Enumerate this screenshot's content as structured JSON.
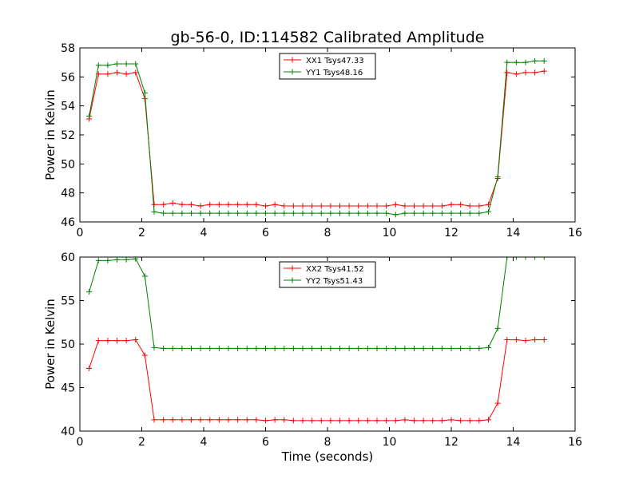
{
  "title": "gb-56-0, ID:114582 Calibrated Amplitude",
  "colors": {
    "xx": "#ff0000",
    "yy": "#008000",
    "axes": "#000000",
    "background": "#ffffff"
  },
  "chart_data": [
    {
      "type": "line",
      "title": "gb-56-0, ID:114582 Calibrated Amplitude",
      "xlabel": "",
      "ylabel": "Power in Kelvin",
      "xlim": [
        0,
        16
      ],
      "ylim": [
        46,
        58
      ],
      "xticks": [
        0,
        2,
        4,
        6,
        8,
        10,
        12,
        14,
        16
      ],
      "yticks": [
        46,
        48,
        50,
        52,
        54,
        56,
        58
      ],
      "xtick_labels": [
        "0",
        "2",
        "4",
        "6",
        "8",
        "10",
        "12",
        "14",
        "16"
      ],
      "ytick_labels": [
        "46",
        "48",
        "50",
        "52",
        "54",
        "56",
        "58"
      ],
      "grid": false,
      "legend_position": "top-center",
      "marker": "+",
      "x": [
        0.3,
        0.6,
        0.9,
        1.2,
        1.5,
        1.8,
        2.1,
        2.4,
        2.7,
        3.0,
        3.3,
        3.6,
        3.9,
        4.2,
        4.5,
        4.8,
        5.1,
        5.4,
        5.7,
        6.0,
        6.3,
        6.6,
        6.9,
        7.2,
        7.5,
        7.8,
        8.1,
        8.4,
        8.7,
        9.0,
        9.3,
        9.6,
        9.9,
        10.2,
        10.5,
        10.8,
        11.1,
        11.4,
        11.7,
        12.0,
        12.3,
        12.6,
        12.9,
        13.2,
        13.5,
        13.8,
        14.1,
        14.4,
        14.7,
        15.0
      ],
      "series": [
        {
          "name": "XX1 Tsys47.33",
          "color": "#ff0000",
          "values": [
            53.1,
            56.2,
            56.2,
            56.3,
            56.2,
            56.3,
            54.5,
            47.2,
            47.2,
            47.3,
            47.2,
            47.2,
            47.1,
            47.2,
            47.2,
            47.2,
            47.2,
            47.2,
            47.2,
            47.1,
            47.2,
            47.1,
            47.1,
            47.1,
            47.1,
            47.1,
            47.1,
            47.1,
            47.1,
            47.1,
            47.1,
            47.1,
            47.1,
            47.2,
            47.1,
            47.1,
            47.1,
            47.1,
            47.1,
            47.2,
            47.2,
            47.1,
            47.1,
            47.2,
            49.0,
            56.3,
            56.2,
            56.3,
            56.3,
            56.4
          ]
        },
        {
          "name": "YY1 Tsys48.16",
          "color": "#008000",
          "values": [
            53.3,
            56.8,
            56.8,
            56.9,
            56.9,
            56.9,
            54.9,
            46.7,
            46.6,
            46.6,
            46.6,
            46.6,
            46.6,
            46.6,
            46.6,
            46.6,
            46.6,
            46.6,
            46.6,
            46.6,
            46.6,
            46.6,
            46.6,
            46.6,
            46.6,
            46.6,
            46.6,
            46.6,
            46.6,
            46.6,
            46.6,
            46.6,
            46.6,
            46.5,
            46.6,
            46.6,
            46.6,
            46.6,
            46.6,
            46.6,
            46.6,
            46.6,
            46.6,
            46.7,
            49.1,
            57.0,
            57.0,
            57.0,
            57.1,
            57.1
          ]
        }
      ]
    },
    {
      "type": "line",
      "title": "",
      "xlabel": "Time (seconds)",
      "ylabel": "Power in Kelvin",
      "xlim": [
        0,
        16
      ],
      "ylim": [
        40,
        60
      ],
      "xticks": [
        0,
        2,
        4,
        6,
        8,
        10,
        12,
        14,
        16
      ],
      "yticks": [
        40,
        45,
        50,
        55,
        60
      ],
      "xtick_labels": [
        "0",
        "2",
        "4",
        "6",
        "8",
        "10",
        "12",
        "14",
        "16"
      ],
      "ytick_labels": [
        "40",
        "45",
        "50",
        "55",
        "60"
      ],
      "grid": false,
      "legend_position": "top-center",
      "marker": "+",
      "x": [
        0.3,
        0.6,
        0.9,
        1.2,
        1.5,
        1.8,
        2.1,
        2.4,
        2.7,
        3.0,
        3.3,
        3.6,
        3.9,
        4.2,
        4.5,
        4.8,
        5.1,
        5.4,
        5.7,
        6.0,
        6.3,
        6.6,
        6.9,
        7.2,
        7.5,
        7.8,
        8.1,
        8.4,
        8.7,
        9.0,
        9.3,
        9.6,
        9.9,
        10.2,
        10.5,
        10.8,
        11.1,
        11.4,
        11.7,
        12.0,
        12.3,
        12.6,
        12.9,
        13.2,
        13.5,
        13.8,
        14.1,
        14.4,
        14.7,
        15.0
      ],
      "series": [
        {
          "name": "XX2 Tsys41.52",
          "color": "#ff0000",
          "values": [
            47.2,
            50.4,
            50.4,
            50.4,
            50.4,
            50.5,
            48.7,
            41.3,
            41.3,
            41.3,
            41.3,
            41.3,
            41.3,
            41.3,
            41.3,
            41.3,
            41.3,
            41.3,
            41.3,
            41.2,
            41.3,
            41.3,
            41.2,
            41.2,
            41.2,
            41.2,
            41.2,
            41.2,
            41.2,
            41.2,
            41.2,
            41.2,
            41.2,
            41.2,
            41.3,
            41.2,
            41.2,
            41.2,
            41.2,
            41.3,
            41.2,
            41.2,
            41.2,
            41.3,
            43.2,
            50.5,
            50.5,
            50.4,
            50.5,
            50.5
          ]
        },
        {
          "name": "YY2 Tsys51.43",
          "color": "#008000",
          "values": [
            56.0,
            59.6,
            59.6,
            59.7,
            59.7,
            59.8,
            57.8,
            49.6,
            49.5,
            49.5,
            49.5,
            49.5,
            49.5,
            49.5,
            49.5,
            49.5,
            49.5,
            49.5,
            49.5,
            49.5,
            49.5,
            49.5,
            49.5,
            49.5,
            49.5,
            49.5,
            49.5,
            49.5,
            49.5,
            49.5,
            49.5,
            49.5,
            49.5,
            49.5,
            49.5,
            49.5,
            49.5,
            49.5,
            49.5,
            49.5,
            49.5,
            49.5,
            49.5,
            49.6,
            51.8,
            60.0,
            60.0,
            60.0,
            60.0,
            60.0
          ]
        }
      ]
    }
  ]
}
